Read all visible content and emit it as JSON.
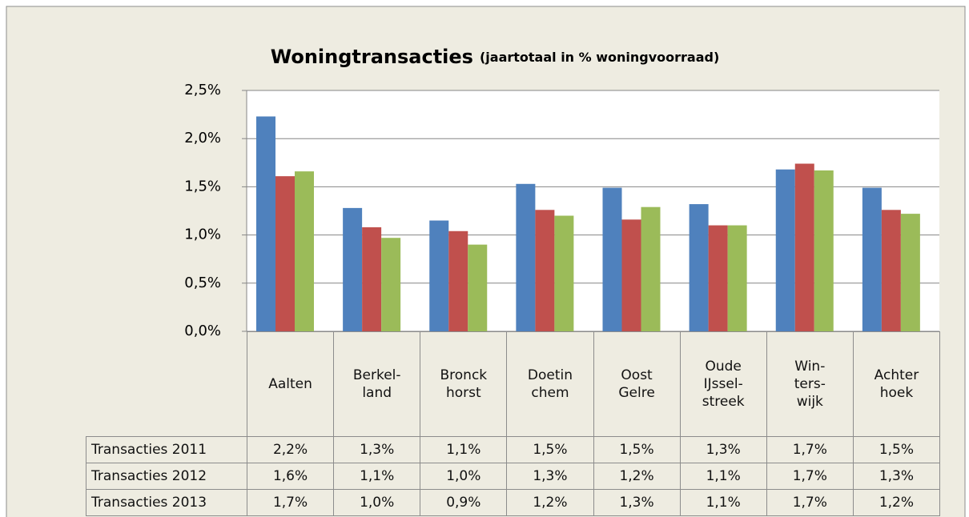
{
  "chart_data": {
    "type": "bar",
    "title": "Woningtransacties",
    "subtitle": "(jaartotaal in % woningvoorraad)",
    "categories": [
      "Aalten",
      "Berkel-\nland",
      "Bronck\nhorst",
      "Doetin\nchem",
      "Oost\nGelre",
      "Oude\nIJssel-\nstreek",
      "Win-\nters-\nwijk",
      "Achter\nhoek"
    ],
    "series": [
      {
        "name": "Transacties 2011",
        "color": "#4f81bd",
        "values": [
          2.23,
          1.28,
          1.15,
          1.53,
          1.49,
          1.32,
          1.68,
          1.49
        ],
        "value_labels": [
          "2,2%",
          "1,3%",
          "1,1%",
          "1,5%",
          "1,5%",
          "1,3%",
          "1,7%",
          "1,5%"
        ]
      },
      {
        "name": "Transacties 2012",
        "color": "#c0504d",
        "values": [
          1.61,
          1.08,
          1.04,
          1.26,
          1.16,
          1.1,
          1.74,
          1.26
        ],
        "value_labels": [
          "1,6%",
          "1,1%",
          "1,0%",
          "1,3%",
          "1,2%",
          "1,1%",
          "1,7%",
          "1,3%"
        ]
      },
      {
        "name": "Transacties 2013",
        "color": "#9bbb59",
        "values": [
          1.66,
          0.97,
          0.9,
          1.2,
          1.29,
          1.1,
          1.67,
          1.22
        ],
        "value_labels": [
          "1,7%",
          "1,0%",
          "0,9%",
          "1,2%",
          "1,3%",
          "1,1%",
          "1,7%",
          "1,2%"
        ]
      }
    ],
    "ylim": [
      0,
      2.5
    ],
    "yticks": [
      {
        "value": 0,
        "label": "0,0%"
      },
      {
        "value": 0.5,
        "label": "0,5%"
      },
      {
        "value": 1,
        "label": "1,0%"
      },
      {
        "value": 1.5,
        "label": "1,5%"
      },
      {
        "value": 2,
        "label": "2,0%"
      },
      {
        "value": 2.5,
        "label": "2,5%"
      }
    ],
    "grid": true
  }
}
